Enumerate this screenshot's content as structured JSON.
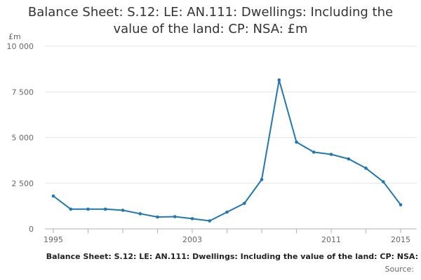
{
  "chart_data": {
    "type": "line",
    "title_lines": [
      "Balance Sheet: S.12: LE: AN.111: Dwellings: Including the",
      "value of the land: CP: NSA: £m"
    ],
    "ylabel": "£m",
    "xlabel": "",
    "ylim": [
      0,
      10000
    ],
    "y_ticks": [
      {
        "value": 0,
        "label": "0"
      },
      {
        "value": 2500,
        "label": "2 500"
      },
      {
        "value": 5000,
        "label": "5 000"
      },
      {
        "value": 7500,
        "label": "7 500"
      },
      {
        "value": 10000,
        "label": "10 000"
      }
    ],
    "x_ticks": [
      {
        "value": 1995,
        "label": "1995"
      },
      {
        "value": 2003,
        "label": "2003"
      },
      {
        "value": 2011,
        "label": "2011"
      },
      {
        "value": 2015,
        "label": "2015"
      }
    ],
    "xlim": [
      1995,
      2015
    ],
    "grid": true,
    "series": [
      {
        "x": [
          1995,
          1996,
          1997,
          1998,
          1999,
          2000,
          2001,
          2002,
          2003,
          2004,
          2005,
          2006,
          2007,
          2008,
          2009,
          2010,
          2011,
          2012,
          2013,
          2014,
          2015
        ],
        "values": [
          1800,
          1080,
          1080,
          1080,
          1020,
          830,
          650,
          670,
          560,
          440,
          920,
          1400,
          2700,
          8150,
          4750,
          4200,
          4080,
          3830,
          3320,
          2580,
          1320
        ]
      }
    ],
    "colors": {
      "line": "#1f77b4",
      "grid": "#e6e6e6",
      "axis": "#b0b0b0",
      "tick_text": "#666666"
    }
  },
  "footer": {
    "caption": "Balance Sheet: S.12: LE: AN.111: Dwellings: Including the value of the land: CP: NSA:",
    "source": "Source:"
  }
}
